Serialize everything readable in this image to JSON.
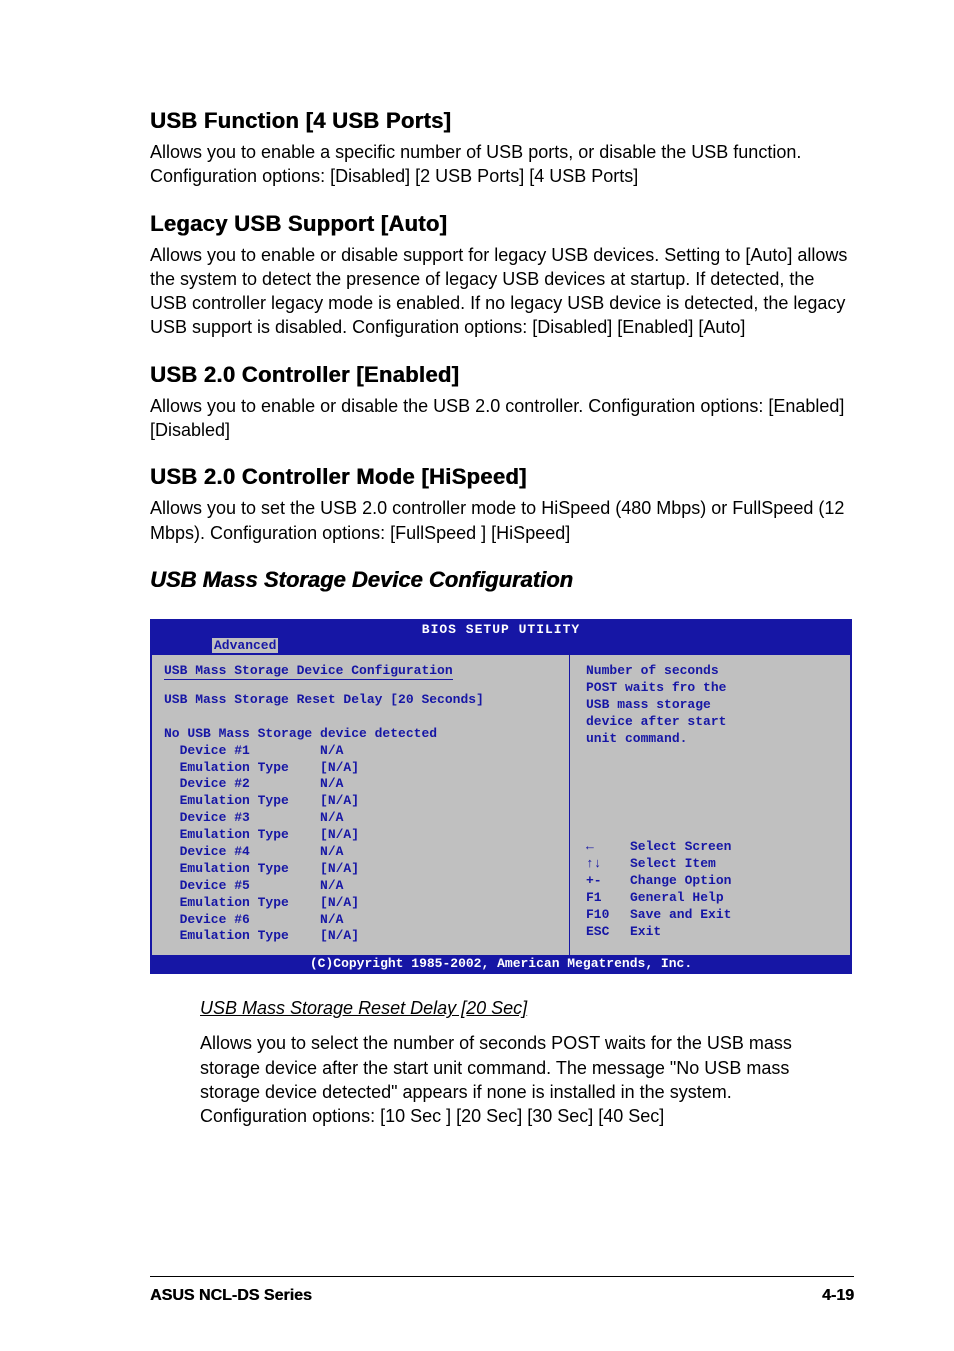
{
  "sections": {
    "usb_function": {
      "heading": "USB Function [4 USB Ports]",
      "body": "Allows you to enable a specific number of USB ports, or disable the USB function. Configuration options: [Disabled] [2 USB Ports] [4 USB Ports]"
    },
    "legacy_usb": {
      "heading": "Legacy USB Support [Auto]",
      "body": "Allows you to enable or disable support for legacy USB devices. Setting to [Auto] allows the system to detect the presence of legacy USB devices at startup. If detected, the USB controller legacy mode is enabled. If no legacy USB device is detected, the legacy USB support is disabled. Configuration options: [Disabled] [Enabled] [Auto]"
    },
    "usb20_ctrl": {
      "heading": "USB 2.0 Controller [Enabled]",
      "body": "Allows you to enable or disable the USB 2.0 controller. Configuration options: [Enabled] [Disabled]"
    },
    "usb20_mode": {
      "heading": "USB 2.0 Controller Mode [HiSpeed]",
      "body": "Allows you to set the USB 2.0 controller mode to HiSpeed (480 Mbps) or FullSpeed (12 Mbps). Configuration options: [FullSpeed ] [HiSpeed]"
    },
    "mass_storage_heading": "USB Mass Storage Device Configuration"
  },
  "bios": {
    "titlebar": "BIOS SETUP UTILITY",
    "tab": "Advanced",
    "left_title": "USB Mass Storage Device Configuration",
    "reset_delay_line": "USB Mass Storage Reset Delay [20 Seconds]",
    "no_device_line": "No USB Mass Storage device detected",
    "devices": [
      {
        "name": "Device #1",
        "val": "N/A",
        "emu": "[N/A]"
      },
      {
        "name": "Device #2",
        "val": "N/A",
        "emu": "[N/A]"
      },
      {
        "name": "Device #3",
        "val": "N/A",
        "emu": "[N/A]"
      },
      {
        "name": "Device #4",
        "val": "N/A",
        "emu": "[N/A]"
      },
      {
        "name": "Device #5",
        "val": "N/A",
        "emu": "[N/A]"
      },
      {
        "name": "Device #6",
        "val": "N/A",
        "emu": "[N/A]"
      }
    ],
    "help_text_lines": [
      "Number of seconds",
      "POST waits fro the",
      "USB mass storage",
      "device after start",
      "unit command."
    ],
    "nav": [
      {
        "key": "←",
        "label": "Select Screen"
      },
      {
        "key": "↑↓",
        "label": "Select Item"
      },
      {
        "key": "+-",
        "label": "Change Option"
      },
      {
        "key": "F1",
        "label": "General Help"
      },
      {
        "key": "F10",
        "label": "Save and Exit"
      },
      {
        "key": "ESC",
        "label": "Exit"
      }
    ],
    "footer": "(C)Copyright 1985-2002, American Megatrends, Inc."
  },
  "sub": {
    "heading": "USB Mass Storage Reset Delay [20 Sec]",
    "body": "Allows you to select the number of seconds POST waits for the USB mass storage device after the start unit command. The message \"No USB mass storage device detected\" appears if none is installed in the system. Configuration options: [10 Sec ] [20 Sec] [30 Sec] [40 Sec]"
  },
  "page_footer": {
    "left": "ASUS NCL-DS Series",
    "right": "4-19"
  },
  "style": {
    "bios_blue": "#1616a5",
    "bios_gray": "#c0c0c0"
  }
}
